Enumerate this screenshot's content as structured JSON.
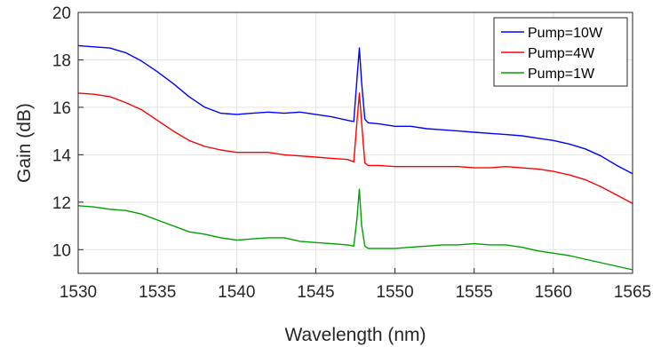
{
  "chart_data": {
    "type": "line",
    "title": "",
    "xlabel": "Wavelength (nm)",
    "ylabel": "Gain (dB)",
    "xlim": [
      1530,
      1565
    ],
    "ylim": [
      9,
      20
    ],
    "xticks": [
      1530,
      1535,
      1540,
      1545,
      1550,
      1555,
      1560,
      1565
    ],
    "yticks": [
      10,
      12,
      14,
      16,
      18,
      20
    ],
    "grid": true,
    "legend_position": "top-right",
    "series": [
      {
        "name": "Pump=10W",
        "color": "#0000ff",
        "x": [
          1530,
          1531,
          1532,
          1533,
          1534,
          1535,
          1536,
          1537,
          1538,
          1539,
          1540,
          1541,
          1542,
          1543,
          1544,
          1545,
          1546,
          1547,
          1547.4,
          1547.6,
          1547.75,
          1547.9,
          1548.1,
          1548.3,
          1549,
          1550,
          1551,
          1552,
          1553,
          1554,
          1555,
          1556,
          1557,
          1558,
          1559,
          1560,
          1561,
          1562,
          1563,
          1564,
          1565
        ],
        "y": [
          18.6,
          18.55,
          18.5,
          18.3,
          17.95,
          17.5,
          17.0,
          16.45,
          16.0,
          15.75,
          15.7,
          15.75,
          15.8,
          15.75,
          15.8,
          15.7,
          15.6,
          15.45,
          15.4,
          17.2,
          18.5,
          17.0,
          15.5,
          15.35,
          15.3,
          15.2,
          15.2,
          15.1,
          15.05,
          15.0,
          14.95,
          14.9,
          14.85,
          14.8,
          14.7,
          14.6,
          14.45,
          14.25,
          13.95,
          13.55,
          13.2
        ]
      },
      {
        "name": "Pump=4W",
        "color": "#ff0000",
        "x": [
          1530,
          1531,
          1532,
          1533,
          1534,
          1535,
          1536,
          1537,
          1538,
          1539,
          1540,
          1541,
          1542,
          1543,
          1544,
          1545,
          1546,
          1547,
          1547.4,
          1547.6,
          1547.75,
          1547.9,
          1548.1,
          1548.3,
          1549,
          1550,
          1551,
          1552,
          1553,
          1554,
          1555,
          1556,
          1557,
          1558,
          1559,
          1560,
          1561,
          1562,
          1563,
          1564,
          1565
        ],
        "y": [
          16.6,
          16.55,
          16.45,
          16.2,
          15.9,
          15.45,
          15.0,
          14.6,
          14.35,
          14.2,
          14.1,
          14.1,
          14.1,
          14.0,
          13.95,
          13.9,
          13.85,
          13.8,
          13.7,
          15.4,
          16.6,
          15.3,
          13.65,
          13.55,
          13.55,
          13.5,
          13.5,
          13.5,
          13.5,
          13.5,
          13.45,
          13.45,
          13.5,
          13.45,
          13.4,
          13.3,
          13.15,
          12.95,
          12.65,
          12.3,
          11.95
        ]
      },
      {
        "name": "Pump=1W",
        "color": "#00a000",
        "x": [
          1530,
          1531,
          1532,
          1533,
          1534,
          1535,
          1536,
          1537,
          1538,
          1539,
          1540,
          1541,
          1542,
          1543,
          1544,
          1545,
          1546,
          1547,
          1547.4,
          1547.6,
          1547.75,
          1547.9,
          1548.1,
          1548.3,
          1549,
          1550,
          1551,
          1552,
          1553,
          1554,
          1555,
          1556,
          1557,
          1558,
          1559,
          1560,
          1561,
          1562,
          1563,
          1564,
          1565
        ],
        "y": [
          11.85,
          11.8,
          11.7,
          11.65,
          11.5,
          11.25,
          11.0,
          10.75,
          10.65,
          10.5,
          10.4,
          10.45,
          10.5,
          10.5,
          10.35,
          10.3,
          10.25,
          10.2,
          10.15,
          11.3,
          12.55,
          11.0,
          10.15,
          10.05,
          10.05,
          10.05,
          10.1,
          10.15,
          10.2,
          10.2,
          10.25,
          10.2,
          10.2,
          10.1,
          9.95,
          9.85,
          9.75,
          9.6,
          9.45,
          9.3,
          9.15
        ]
      }
    ]
  }
}
